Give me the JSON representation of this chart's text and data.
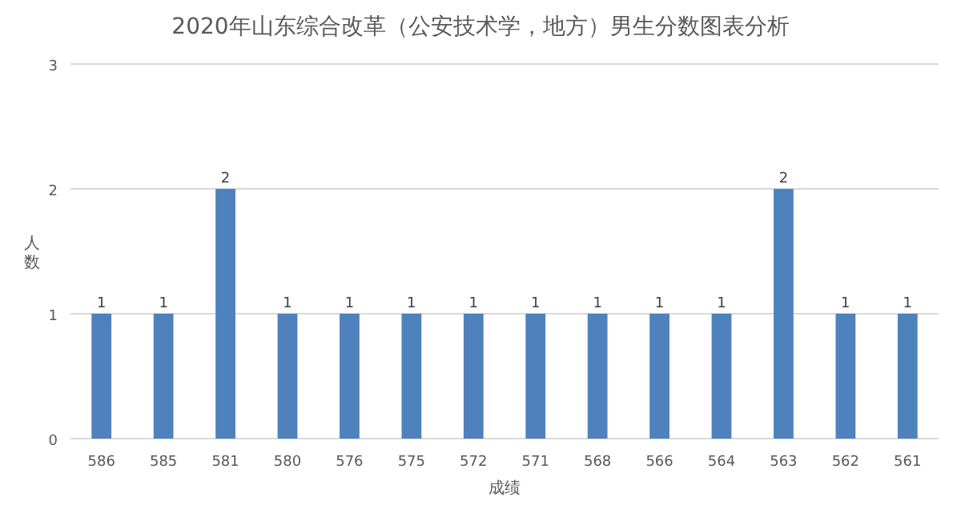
{
  "chart_data": {
    "type": "bar",
    "title": "2020年山东综合改革（公安技术学，地方）男生分数图表分析",
    "xlabel": "成绩",
    "ylabel": "人数",
    "categories": [
      "586",
      "585",
      "581",
      "580",
      "576",
      "575",
      "572",
      "571",
      "568",
      "566",
      "564",
      "563",
      "562",
      "561"
    ],
    "values": [
      1,
      1,
      2,
      1,
      1,
      1,
      1,
      1,
      1,
      1,
      1,
      2,
      1,
      1
    ],
    "color": "#4f81bd",
    "ylim": [
      0,
      3
    ],
    "yticks": [
      0,
      1,
      2,
      3
    ],
    "grid": "y",
    "data_labels": true
  }
}
